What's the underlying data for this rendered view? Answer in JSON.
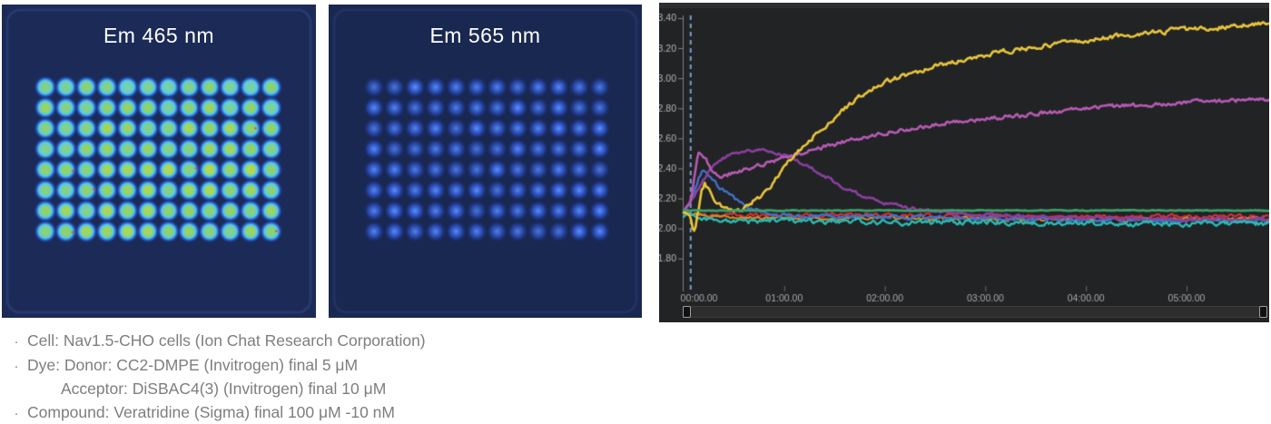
{
  "plate_em465": {
    "title": "Em 465 nm",
    "rows": 8,
    "cols": 12,
    "bg": "#1b2a57",
    "frame_color": "rgba(70,95,160,0.30)",
    "ring_color": "#55cae8",
    "glow_color": "#2a5fd0",
    "center_palette": [
      "#6fd0c0",
      "#8ed36e",
      "#bcdc4a"
    ],
    "speckles": [
      [
        1,
        4
      ],
      [
        10,
        2
      ],
      [
        7,
        4
      ],
      [
        2,
        5
      ],
      [
        1,
        7
      ],
      [
        11,
        7
      ]
    ],
    "speckle_color": "#d94f22"
  },
  "plate_em565": {
    "title": "Em 565 nm",
    "rows": 8,
    "cols": 12,
    "bg": "#192850",
    "frame_color": "rgba(60,85,150,0.25)",
    "center_color": "#5e93f5",
    "mid_color": "#3b66d8",
    "glow_color": "#24409f"
  },
  "chart_data": {
    "type": "line",
    "title": "",
    "grid": false,
    "legend": false,
    "bg": "#212325",
    "top_strip_color": "#2d2f31",
    "axis_color": "#808080",
    "tick_color": "#6a6a6a",
    "tick_label_color": "#b5b5b5",
    "event_line_t": 0.07,
    "event_line_color": "#7d9fd2",
    "xlim": [
      0,
      5.82
    ],
    "ylim": [
      1.57,
      3.43
    ],
    "x_ticks": [
      "00:00.00",
      "01:00.00",
      "02:00.00",
      "03:00.00",
      "04:00.00",
      "05:00.00"
    ],
    "x_tick_values": [
      0,
      1,
      2,
      3,
      4,
      5
    ],
    "y_ticks": [
      "3.40",
      "3.20",
      "3.00",
      "2.80",
      "2.60",
      "2.40",
      "2.20",
      "2.00",
      "1.80"
    ],
    "y_tick_values": [
      3.4,
      3.2,
      3.0,
      2.8,
      2.6,
      2.4,
      2.2,
      2.0,
      1.8
    ],
    "series": [
      {
        "name": "red",
        "color": "#cf3238",
        "width": 2.2,
        "noise": 0.007,
        "points": [
          [
            0,
            2.1
          ],
          [
            0.2,
            2.09
          ],
          [
            1,
            2.09
          ],
          [
            2,
            2.09
          ],
          [
            3,
            2.08
          ],
          [
            4,
            2.08
          ],
          [
            5.82,
            2.08
          ]
        ]
      },
      {
        "name": "orange",
        "color": "#d2902e",
        "width": 2.0,
        "noise": 0.006,
        "points": [
          [
            0,
            2.1
          ],
          [
            0.3,
            2.08
          ],
          [
            1,
            2.07
          ],
          [
            2,
            2.07
          ],
          [
            3.5,
            2.06
          ],
          [
            5.82,
            2.06
          ]
        ]
      },
      {
        "name": "blue",
        "color": "#4270c8",
        "width": 2.4,
        "noise": 0.007,
        "points": [
          [
            0,
            2.11
          ],
          [
            0.09,
            2.2
          ],
          [
            0.15,
            2.33
          ],
          [
            0.19,
            2.38
          ],
          [
            0.27,
            2.33
          ],
          [
            0.35,
            2.28
          ],
          [
            0.44,
            2.23
          ],
          [
            0.54,
            2.18
          ],
          [
            0.64,
            2.14
          ],
          [
            0.78,
            2.11
          ],
          [
            0.95,
            2.09
          ],
          [
            1.2,
            2.08
          ],
          [
            1.8,
            2.08
          ],
          [
            2.5,
            2.07
          ],
          [
            3.5,
            2.06
          ],
          [
            4.5,
            2.06
          ],
          [
            5.82,
            2.05
          ]
        ]
      },
      {
        "name": "purple",
        "color": "#8b3f9e",
        "width": 2.6,
        "noise": 0.006,
        "points": [
          [
            0,
            2.11
          ],
          [
            0.1,
            2.2
          ],
          [
            0.18,
            2.3
          ],
          [
            0.27,
            2.4
          ],
          [
            0.37,
            2.46
          ],
          [
            0.5,
            2.5
          ],
          [
            0.65,
            2.52
          ],
          [
            0.8,
            2.52
          ],
          [
            0.95,
            2.5
          ],
          [
            1.1,
            2.46
          ],
          [
            1.25,
            2.41
          ],
          [
            1.4,
            2.35
          ],
          [
            1.55,
            2.29
          ],
          [
            1.7,
            2.24
          ],
          [
            1.85,
            2.2
          ],
          [
            2.0,
            2.17
          ],
          [
            2.2,
            2.14
          ],
          [
            2.4,
            2.12
          ],
          [
            2.7,
            2.1
          ],
          [
            3.0,
            2.09
          ],
          [
            3.5,
            2.08
          ],
          [
            4.0,
            2.07
          ],
          [
            4.5,
            2.07
          ],
          [
            5.0,
            2.06
          ],
          [
            5.82,
            2.06
          ]
        ]
      },
      {
        "name": "teal",
        "color": "#2abcb2",
        "width": 2.4,
        "noise": 0.01,
        "points": [
          [
            0,
            2.09
          ],
          [
            0.15,
            2.06
          ],
          [
            0.5,
            2.05
          ],
          [
            1,
            2.05
          ],
          [
            2,
            2.04
          ],
          [
            3,
            2.04
          ],
          [
            4,
            2.035
          ],
          [
            5.82,
            2.03
          ]
        ]
      },
      {
        "name": "magenta",
        "color": "#b65ab2",
        "width": 2.6,
        "noise": 0.008,
        "points": [
          [
            0,
            2.11
          ],
          [
            0.07,
            2.18
          ],
          [
            0.12,
            2.4
          ],
          [
            0.15,
            2.51
          ],
          [
            0.21,
            2.47
          ],
          [
            0.28,
            2.39
          ],
          [
            0.38,
            2.35
          ],
          [
            0.5,
            2.37
          ],
          [
            0.65,
            2.4
          ],
          [
            0.8,
            2.43
          ],
          [
            1.0,
            2.47
          ],
          [
            1.2,
            2.51
          ],
          [
            1.5,
            2.56
          ],
          [
            1.8,
            2.61
          ],
          [
            2.1,
            2.65
          ],
          [
            2.4,
            2.68
          ],
          [
            2.7,
            2.71
          ],
          [
            3.0,
            2.73
          ],
          [
            3.3,
            2.75
          ],
          [
            3.6,
            2.77
          ],
          [
            3.9,
            2.79
          ],
          [
            4.2,
            2.81
          ],
          [
            4.5,
            2.82
          ],
          [
            4.8,
            2.83
          ],
          [
            5.1,
            2.84
          ],
          [
            5.4,
            2.85
          ],
          [
            5.82,
            2.86
          ]
        ]
      },
      {
        "name": "yellow",
        "color": "#e9c53b",
        "width": 2.6,
        "noise": 0.009,
        "points": [
          [
            0,
            2.11
          ],
          [
            0.06,
            2.1
          ],
          [
            0.09,
            2.01
          ],
          [
            0.11,
            1.99
          ],
          [
            0.14,
            2.1
          ],
          [
            0.18,
            2.26
          ],
          [
            0.21,
            2.3
          ],
          [
            0.27,
            2.23
          ],
          [
            0.35,
            2.16
          ],
          [
            0.45,
            2.12
          ],
          [
            0.55,
            2.12
          ],
          [
            0.65,
            2.16
          ],
          [
            0.75,
            2.21
          ],
          [
            0.87,
            2.29
          ],
          [
            1.0,
            2.4
          ],
          [
            1.05,
            2.45
          ],
          [
            1.2,
            2.56
          ],
          [
            1.4,
            2.68
          ],
          [
            1.6,
            2.8
          ],
          [
            1.8,
            2.9
          ],
          [
            2.0,
            2.97
          ],
          [
            2.2,
            3.02
          ],
          [
            2.5,
            3.08
          ],
          [
            2.8,
            3.13
          ],
          [
            3.1,
            3.17
          ],
          [
            3.4,
            3.2
          ],
          [
            3.7,
            3.23
          ],
          [
            4.0,
            3.25
          ],
          [
            4.3,
            3.28
          ],
          [
            4.6,
            3.3
          ],
          [
            4.9,
            3.32
          ],
          [
            5.2,
            3.33
          ],
          [
            5.5,
            3.35
          ],
          [
            5.82,
            3.37
          ]
        ]
      },
      {
        "name": "green",
        "color": "#3f9e6a",
        "width": 2.8,
        "noise": 0.0015,
        "points": [
          [
            0,
            2.12
          ],
          [
            5.82,
            2.12
          ]
        ]
      }
    ]
  },
  "notes": {
    "bullet": "·",
    "lines": [
      {
        "text": "Cell: Nav1.5-CHO cells (Ion Chat Research Corporation)"
      },
      {
        "text": "Dye: Donor: CC2-DMPE (Invitrogen) final 5 μM"
      },
      {
        "text": "Acceptor: DiSBAC4(3) (Invitrogen) final 10 μM"
      },
      {
        "text": "Compound: Veratridine (Sigma) final 100 μM -10 nM"
      }
    ]
  }
}
